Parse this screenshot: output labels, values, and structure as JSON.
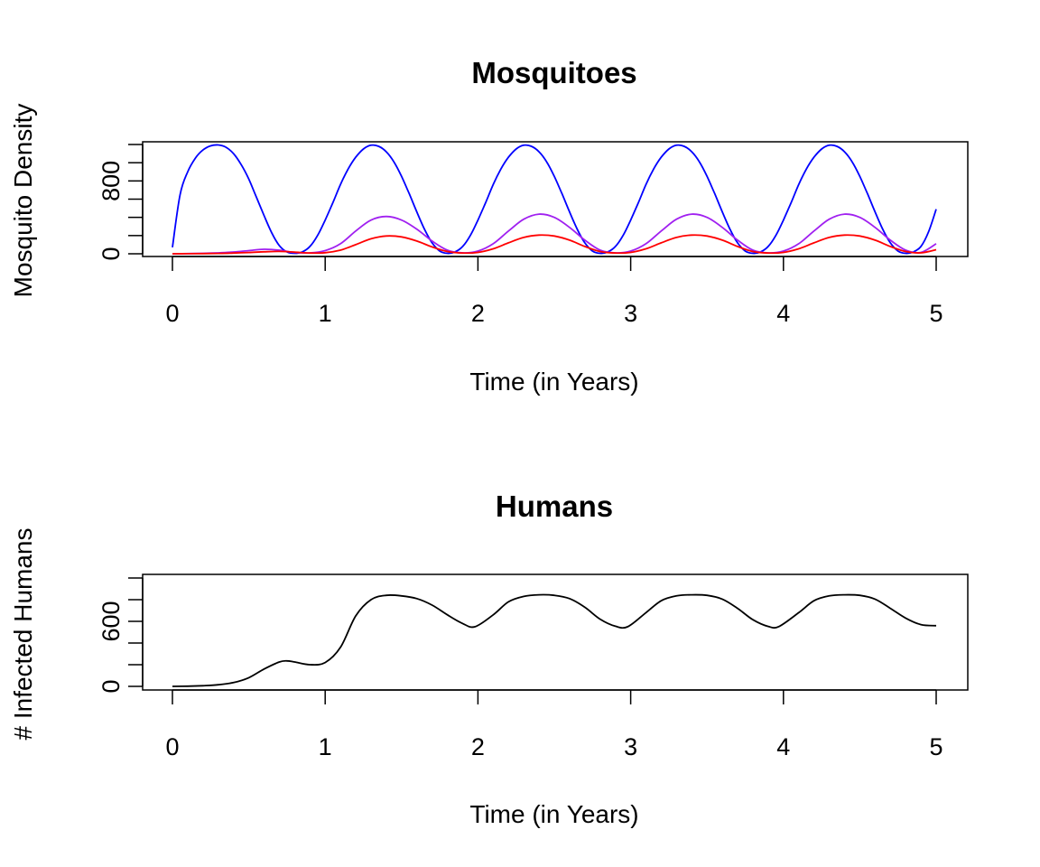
{
  "chart_data": [
    {
      "type": "line",
      "title": "Mosquitoes",
      "xlabel": "Time (in Years)",
      "ylabel": "Mosquito Density",
      "xlim": [
        0,
        5
      ],
      "ylim": [
        0,
        1200
      ],
      "x_ticks": [
        0,
        1,
        2,
        3,
        4,
        5
      ],
      "y_ticks": [
        0,
        200,
        400,
        600,
        800,
        1000,
        1200
      ],
      "y_tick_labels": [
        "0",
        "",
        "",
        "",
        "800",
        "",
        ""
      ],
      "grid": false,
      "legend": "none",
      "series": [
        {
          "color": "#0000ff",
          "x": [
            0,
            0.05,
            0.1,
            0.15,
            0.2,
            0.25,
            0.3,
            0.35,
            0.4,
            0.45,
            0.5,
            0.55,
            0.6,
            0.65,
            0.7,
            0.75,
            0.8,
            0.85,
            0.9,
            0.95,
            1.0,
            1.05,
            1.1,
            1.15,
            1.2,
            1.25,
            1.3,
            1.35,
            1.4,
            1.45,
            1.5,
            1.55,
            1.6,
            1.65,
            1.7,
            1.75,
            1.8,
            1.85,
            1.9,
            1.95,
            2.0,
            2.05,
            2.1,
            2.15,
            2.2,
            2.25,
            2.3,
            2.35,
            2.4,
            2.45,
            2.5,
            2.55,
            2.6,
            2.65,
            2.7,
            2.75,
            2.8,
            2.85,
            2.9,
            2.95,
            3.0,
            3.05,
            3.1,
            3.15,
            3.2,
            3.25,
            3.3,
            3.35,
            3.4,
            3.45,
            3.5,
            3.55,
            3.6,
            3.65,
            3.7,
            3.75,
            3.8,
            3.85,
            3.9,
            3.95,
            4.0,
            4.05,
            4.1,
            4.15,
            4.2,
            4.25,
            4.3,
            4.35,
            4.4,
            4.45,
            4.5,
            4.55,
            4.6,
            4.65,
            4.7,
            4.75,
            4.8,
            4.85,
            4.9,
            4.95,
            5.0
          ],
          "values": [
            70,
            650,
            900,
            1050,
            1140,
            1185,
            1195,
            1170,
            1100,
            980,
            820,
            620,
            420,
            230,
            90,
            20,
            5,
            20,
            80,
            200,
            370,
            560,
            760,
            930,
            1060,
            1150,
            1192,
            1180,
            1120,
            1010,
            850,
            660,
            460,
            270,
            120,
            30,
            5,
            20,
            80,
            200,
            370,
            560,
            760,
            930,
            1060,
            1150,
            1192,
            1180,
            1120,
            1010,
            850,
            660,
            460,
            270,
            120,
            30,
            5,
            20,
            80,
            200,
            370,
            560,
            760,
            930,
            1060,
            1150,
            1192,
            1180,
            1120,
            1010,
            850,
            660,
            460,
            270,
            120,
            30,
            5,
            20,
            80,
            200,
            370,
            560,
            760,
            930,
            1060,
            1150,
            1192,
            1180,
            1120,
            1010,
            850,
            660,
            460,
            270,
            120,
            30,
            5,
            20,
            80,
            240,
            490
          ]
        },
        {
          "color": "#a020f0",
          "x": [
            0,
            0.1,
            0.2,
            0.3,
            0.4,
            0.5,
            0.6,
            0.7,
            0.8,
            0.9,
            1.0,
            1.1,
            1.2,
            1.3,
            1.4,
            1.5,
            1.6,
            1.7,
            1.8,
            1.9,
            2.0,
            2.1,
            2.2,
            2.3,
            2.4,
            2.5,
            2.6,
            2.7,
            2.8,
            2.9,
            3.0,
            3.1,
            3.2,
            3.3,
            3.4,
            3.5,
            3.6,
            3.7,
            3.8,
            3.9,
            4.0,
            4.1,
            4.2,
            4.3,
            4.4,
            4.5,
            4.6,
            4.7,
            4.8,
            4.9,
            5.0
          ],
          "values": [
            0,
            2,
            5,
            10,
            20,
            35,
            50,
            40,
            15,
            10,
            35,
            110,
            250,
            370,
            410,
            370,
            270,
            140,
            40,
            10,
            30,
            110,
            250,
            380,
            435,
            400,
            290,
            150,
            40,
            10,
            30,
            110,
            250,
            380,
            435,
            400,
            290,
            150,
            40,
            10,
            30,
            110,
            250,
            380,
            435,
            400,
            290,
            150,
            40,
            15,
            110
          ]
        },
        {
          "color": "#ff0000",
          "x": [
            0,
            0.1,
            0.2,
            0.3,
            0.4,
            0.5,
            0.6,
            0.7,
            0.8,
            0.9,
            1.0,
            1.1,
            1.2,
            1.3,
            1.4,
            1.5,
            1.6,
            1.7,
            1.8,
            1.9,
            2.0,
            2.1,
            2.2,
            2.3,
            2.4,
            2.5,
            2.6,
            2.7,
            2.8,
            2.9,
            3.0,
            3.1,
            3.2,
            3.3,
            3.4,
            3.5,
            3.6,
            3.7,
            3.8,
            3.9,
            4.0,
            4.1,
            4.2,
            4.3,
            4.4,
            4.5,
            4.6,
            4.7,
            4.8,
            4.9,
            5.0
          ],
          "values": [
            0,
            1,
            2,
            4,
            8,
            14,
            22,
            26,
            18,
            8,
            12,
            40,
            100,
            165,
            195,
            185,
            140,
            75,
            25,
            8,
            15,
            55,
            120,
            180,
            205,
            195,
            150,
            80,
            25,
            8,
            15,
            55,
            120,
            180,
            205,
            195,
            150,
            80,
            25,
            8,
            15,
            55,
            120,
            180,
            205,
            195,
            150,
            80,
            25,
            10,
            45
          ]
        }
      ]
    },
    {
      "type": "line",
      "title": "Humans",
      "xlabel": "Time (in Years)",
      "ylabel": "# Infected Humans",
      "xlim": [
        0,
        5
      ],
      "ylim": [
        0,
        1000
      ],
      "x_ticks": [
        0,
        1,
        2,
        3,
        4,
        5
      ],
      "y_ticks": [
        0,
        200,
        400,
        600,
        800,
        1000
      ],
      "y_tick_labels": [
        "0",
        "",
        "",
        "600",
        "",
        ""
      ],
      "grid": false,
      "legend": "none",
      "series": [
        {
          "color": "#000000",
          "x": [
            0,
            0.1,
            0.2,
            0.3,
            0.4,
            0.5,
            0.6,
            0.7,
            0.75,
            0.8,
            0.9,
            1.0,
            1.1,
            1.2,
            1.3,
            1.4,
            1.5,
            1.6,
            1.7,
            1.8,
            1.9,
            1.98,
            2.1,
            2.2,
            2.3,
            2.4,
            2.5,
            2.6,
            2.7,
            2.8,
            2.9,
            2.98,
            3.1,
            3.2,
            3.3,
            3.4,
            3.5,
            3.6,
            3.7,
            3.8,
            3.9,
            3.97,
            4.1,
            4.2,
            4.3,
            4.4,
            4.5,
            4.6,
            4.7,
            4.8,
            4.9,
            5.0
          ],
          "values": [
            0,
            2,
            6,
            15,
            35,
            80,
            160,
            225,
            235,
            225,
            200,
            220,
            360,
            650,
            800,
            840,
            835,
            810,
            750,
            660,
            580,
            550,
            660,
            780,
            830,
            845,
            840,
            810,
            730,
            620,
            555,
            550,
            680,
            790,
            835,
            845,
            840,
            805,
            720,
            615,
            553,
            552,
            680,
            790,
            835,
            845,
            840,
            805,
            720,
            630,
            570,
            560
          ]
        }
      ]
    }
  ]
}
